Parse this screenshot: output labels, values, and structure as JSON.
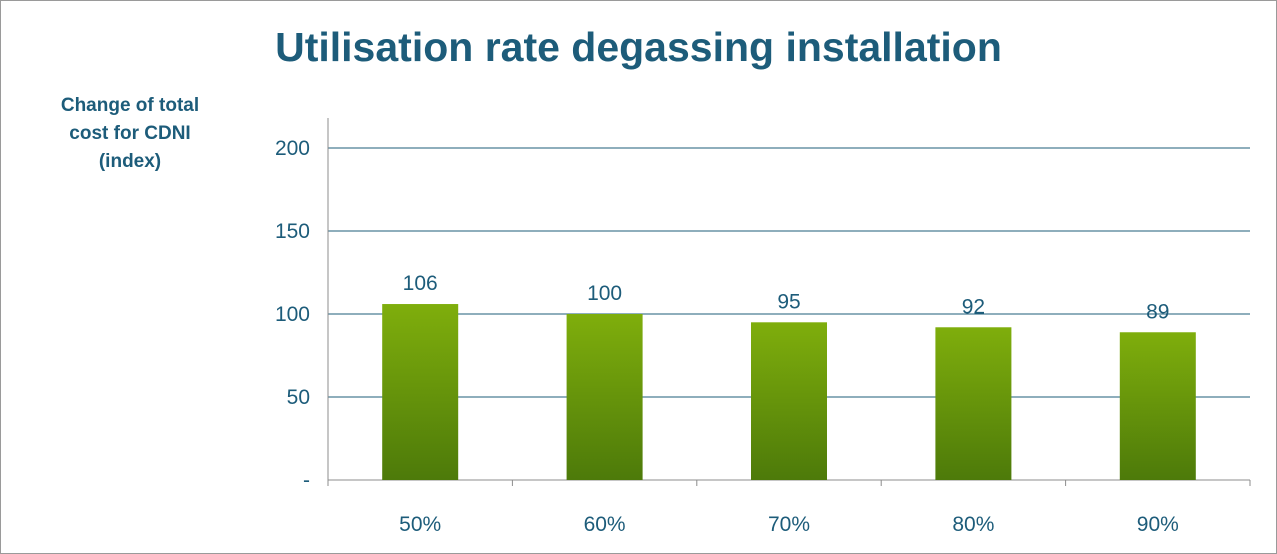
{
  "chart_data": {
    "type": "bar",
    "title": "Utilisation rate degassing installation",
    "ylabel": "Change of total\ncost for CDNI\n(index)",
    "xlabel": "",
    "categories": [
      "50%",
      "60%",
      "70%",
      "80%",
      "90%"
    ],
    "values": [
      106,
      100,
      95,
      92,
      89
    ],
    "data_labels": [
      "106",
      "100",
      "95",
      "92",
      "89"
    ],
    "ylim": [
      0,
      200
    ],
    "yticks": [
      0,
      50,
      100,
      150,
      200
    ],
    "ytick_labels": [
      "-",
      "50",
      "100",
      "150",
      "200"
    ],
    "grid": true,
    "legend": "none",
    "colors": {
      "bar_top": "#7fae0c",
      "bar_bottom": "#4d7a0a",
      "text": "#1d5c7a",
      "grid": "#1d5c7a",
      "axis": "#8c8c8c"
    }
  }
}
